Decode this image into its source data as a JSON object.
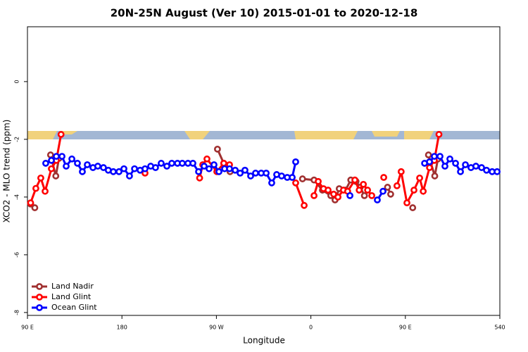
{
  "chart_data": {
    "type": "line",
    "title": "20N-25N August (Ver 10)   2015-01-01 to 2020-12-18",
    "x_label": "Longitude",
    "y_label": "XCO2 - MLO trend (ppm)",
    "xlim": [
      90,
      540
    ],
    "ylim": [
      -8.1,
      1.9
    ],
    "xticks": [
      {
        "value": 90,
        "label": "90 E"
      },
      180,
      {
        "value": 270,
        "label": "90 W"
      },
      {
        "value": 360,
        "label": "0"
      },
      {
        "value": 450,
        "label": "90 E"
      },
      540
    ],
    "yticks": [
      0,
      -2,
      -4,
      -6,
      -8
    ],
    "legend": "bottom-left",
    "series": [
      {
        "name": "Land Nadir",
        "color": "#a03030",
        "x": [
          93,
          97,
          null,
          112,
          117,
          120,
          null,
          271,
          277,
          283,
          null,
          352,
          363,
          371,
          379,
          383,
          387,
          393,
          398,
          403,
          407,
          411,
          null,
          433,
          436,
          null,
          457,
          null,
          472,
          478,
          481
        ],
        "values": [
          -4.24,
          -4.37,
          null,
          -2.54,
          -3.27,
          -2.66,
          null,
          -2.34,
          -2.83,
          -3.12,
          null,
          -3.37,
          -3.41,
          -3.76,
          -3.95,
          -4.1,
          -3.71,
          -3.76,
          -3.41,
          -3.46,
          -3.66,
          -3.95,
          null,
          -3.66,
          -3.9,
          null,
          -4.37,
          null,
          -2.54,
          -3.27,
          -2.68
        ]
      },
      {
        "name": "Land Glint",
        "color": "#ff0000",
        "x": [
          93,
          98,
          102.7,
          106.8,
          112.8,
          117.5,
          122,
          null,
          202,
          null,
          254,
          257,
          261,
          270.4,
          277,
          282.5,
          null,
          345.5,
          353.6,
          null,
          363,
          367,
          372,
          376.4,
          381.7,
          385.8,
          391,
          395,
          401.9,
          406,
          410,
          414,
          418,
          null,
          429.4,
          null,
          442,
          446,
          451.5,
          458.2,
          463.6,
          467,
          473,
          477.6,
          482
        ],
        "values": [
          -4.2,
          -3.7,
          -3.34,
          -3.8,
          -3.02,
          -2.73,
          -1.83,
          null,
          -3.17,
          null,
          -3.34,
          -2.88,
          -2.68,
          -3.12,
          -2.83,
          -2.88,
          null,
          -3.51,
          -4.29,
          null,
          -3.95,
          -3.46,
          -3.71,
          -3.76,
          -3.9,
          -4.0,
          -3.76,
          -3.8,
          -3.41,
          -3.76,
          -3.56,
          -3.76,
          -3.95,
          null,
          -3.32,
          null,
          -3.61,
          -3.12,
          -4.2,
          -3.76,
          -3.34,
          -3.8,
          -2.98,
          -2.73,
          -1.83
        ]
      },
      {
        "name": "Ocean Glint",
        "color": "#0000ff",
        "x": [
          107.4,
          112.8,
          117.5,
          122.9,
          126.9,
          132.3,
          137.6,
          142.3,
          147,
          152.4,
          157,
          162.4,
          167,
          171.8,
          177.2,
          181.9,
          187.2,
          192,
          197.3,
          202,
          207.4,
          212,
          217.4,
          222.8,
          227.5,
          232.9,
          237.5,
          242.9,
          247.6,
          253,
          258.3,
          263,
          267.7,
          272.4,
          277.8,
          282.5,
          287.9,
          292.6,
          297.2,
          302.6,
          307.3,
          312.7,
          317.4,
          322.7,
          327.4,
          332.1,
          337.5,
          342.2,
          345.5,
          null,
          397.2,
          null,
          423.3,
          428.7,
          null,
          468.3,
          473,
          477.6,
          483,
          487.7,
          492.4,
          497.8,
          502.5,
          507.2,
          512.5,
          517.2,
          522.6,
          527.3,
          532.7,
          537.4
        ],
        "values": [
          -2.83,
          -2.73,
          -2.59,
          -2.59,
          -2.93,
          -2.68,
          -2.83,
          -3.12,
          -2.88,
          -2.98,
          -2.93,
          -2.98,
          -3.07,
          -3.12,
          -3.12,
          -3.02,
          -3.27,
          -3.02,
          -3.07,
          -3.02,
          -2.93,
          -2.98,
          -2.83,
          -2.93,
          -2.83,
          -2.83,
          -2.83,
          -2.83,
          -2.83,
          -3.12,
          -2.93,
          -3.02,
          -2.88,
          -3.12,
          -3.02,
          -3.02,
          -3.07,
          -3.17,
          -3.07,
          -3.27,
          -3.17,
          -3.17,
          -3.17,
          -3.51,
          -3.22,
          -3.27,
          -3.32,
          -3.32,
          -2.78,
          null,
          -3.95,
          null,
          -4.1,
          -3.8,
          null,
          -2.83,
          -2.78,
          -2.59,
          -2.59,
          -2.93,
          -2.68,
          -2.83,
          -3.12,
          -2.88,
          -2.98,
          -2.93,
          -2.98,
          -3.07,
          -3.12,
          -3.12
        ]
      }
    ]
  }
}
